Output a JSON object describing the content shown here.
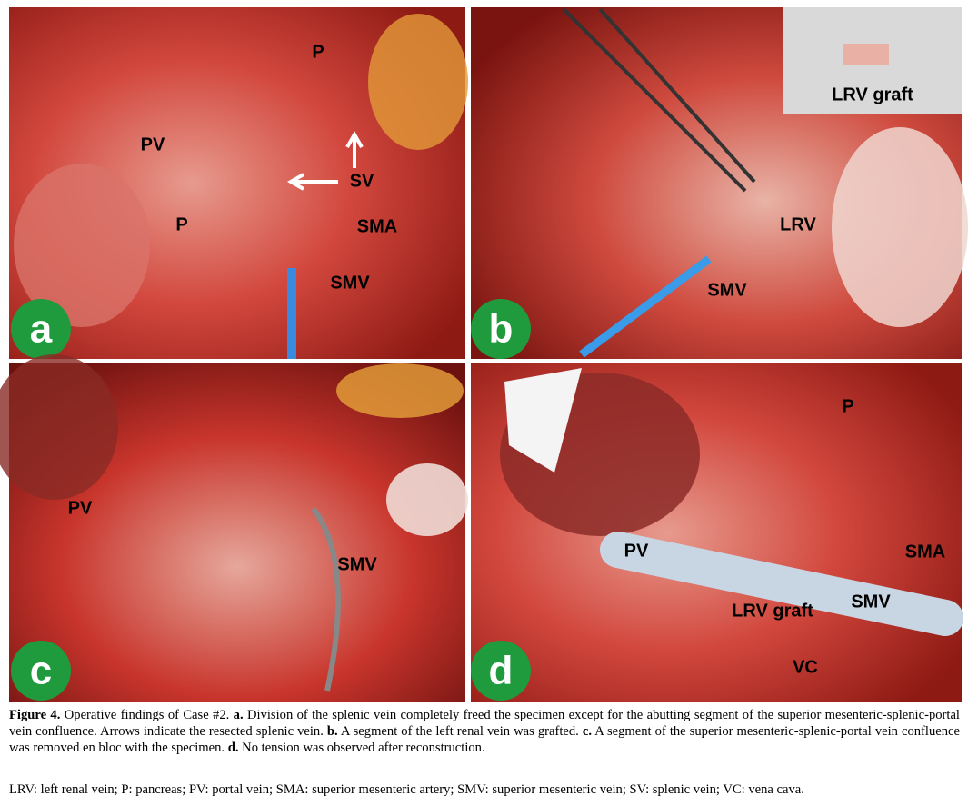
{
  "figure": {
    "panels": [
      {
        "letter": "a",
        "labels": [
          "P",
          "PV",
          "SV",
          "P",
          "SMA",
          "SMV"
        ]
      },
      {
        "letter": "b",
        "labels": [
          "LRV graft",
          "LRV",
          "SMV"
        ]
      },
      {
        "letter": "c",
        "labels": [
          "PV",
          "SMV"
        ]
      },
      {
        "letter": "d",
        "labels": [
          "P",
          "PV",
          "SMA",
          "SMV",
          "LRV graft",
          "VC"
        ]
      }
    ],
    "caption": [
      {
        "text": "Figure 4.",
        "bold": true
      },
      {
        "text": "Operative findings of Case #2.",
        "bold": false
      },
      {
        "text": "a.",
        "bold": true
      },
      {
        "text": "Division of the splenic vein completely freed the specimen except for the abutting segment of the superior mesenteric-splenic-portal vein confluence. Arrows indicate the resected splenic vein.",
        "bold": false
      },
      {
        "text": "b.",
        "bold": true
      },
      {
        "text": "A segment of the left renal vein was grafted.",
        "bold": false
      },
      {
        "text": "c.",
        "bold": true
      },
      {
        "text": "A segment of the superior mesenteric-splenic-portal vein confluence was removed en bloc with the specimen.",
        "bold": false
      },
      {
        "text": "d.",
        "bold": true
      },
      {
        "text": "No tension was observed after reconstruction.",
        "bold": false
      }
    ],
    "abbreviations": "LRV: left renal vein; P: pancreas; PV: portal vein; SMA: superior mesenteric artery; SMV: superior mesenteric vein; SV: splenic vein; VC: vena cava."
  }
}
